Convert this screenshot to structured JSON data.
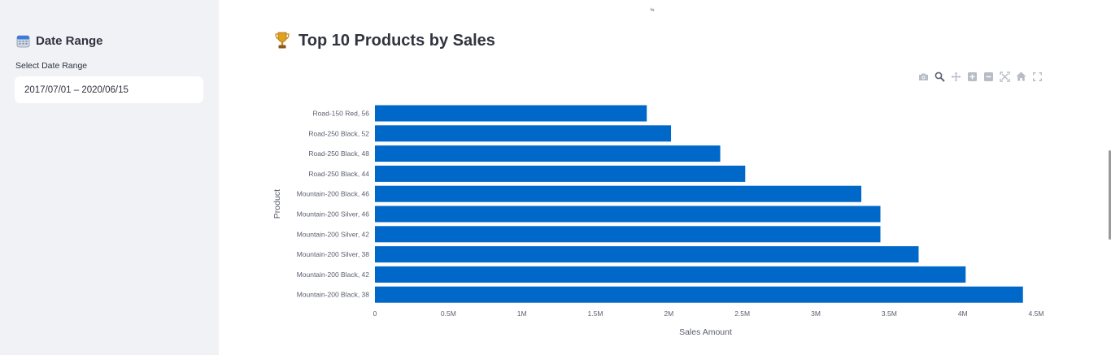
{
  "sidebar": {
    "title": "Date Range",
    "date_label": "Select Date Range",
    "date_value": "2017/07/01 – 2020/06/15"
  },
  "main": {
    "top_glyph": "≒",
    "title": "Top 10 Products by Sales"
  },
  "modebar": {
    "icons": [
      "camera-icon",
      "zoom-icon",
      "pan-icon",
      "zoom-in-icon",
      "zoom-out-icon",
      "autoscale-icon",
      "reset-axes-icon",
      "fullscreen-icon"
    ]
  },
  "colors": {
    "bar": "#0068c9",
    "sidebar_bg": "#f0f2f6",
    "text": "#31333f"
  },
  "chart_data": {
    "type": "bar",
    "orientation": "horizontal",
    "categories": [
      "Road-150 Red, 56",
      "Road-250 Black, 52",
      "Road-250 Black, 48",
      "Road-250 Black, 44",
      "Mountain-200 Black, 46",
      "Mountain-200 Silver, 46",
      "Mountain-200 Silver, 42",
      "Mountain-200 Silver, 38",
      "Mountain-200 Black, 42",
      "Mountain-200 Black, 38"
    ],
    "values": [
      1850000,
      2015000,
      2350000,
      2520000,
      3310000,
      3440000,
      3440000,
      3700000,
      4020000,
      4410000
    ],
    "xlabel": "Sales Amount",
    "ylabel": "Product",
    "xlim": [
      0,
      4500000
    ],
    "xticks": [
      0,
      500000,
      1000000,
      1500000,
      2000000,
      2500000,
      3000000,
      3500000,
      4000000,
      4500000
    ],
    "xtick_labels": [
      "0",
      "0.5M",
      "1M",
      "1.5M",
      "2M",
      "2.5M",
      "3M",
      "3.5M",
      "4M",
      "4.5M"
    ],
    "grid": false,
    "legend": "none"
  }
}
